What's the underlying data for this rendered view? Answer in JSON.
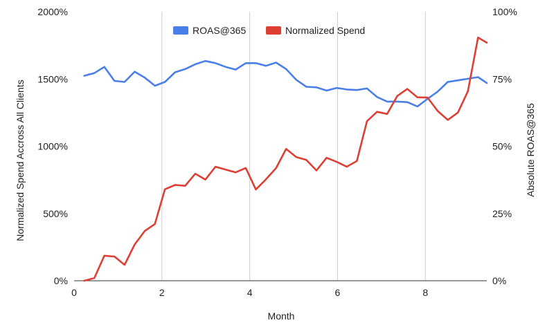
{
  "chart_data": {
    "type": "line",
    "title": "",
    "xlabel": "Month",
    "ylabel_left": "Normalized Spend Accross All Clients",
    "ylabel_right": "Absolute ROAS@365",
    "xlim": [
      0,
      9.4
    ],
    "xticks": [
      0,
      2,
      4,
      6,
      8
    ],
    "xtick_labels": [
      "0",
      "2",
      "4",
      "6",
      "8"
    ],
    "ylim_left": [
      0,
      2000
    ],
    "yticks_left": [
      0,
      500,
      1000,
      1500,
      2000
    ],
    "ytick_labels_left": [
      "0%",
      "500%",
      "1000%",
      "1500%",
      "2000%"
    ],
    "ylim_right": [
      0,
      100
    ],
    "yticks_right": [
      0,
      25,
      50,
      75,
      100
    ],
    "ytick_labels_right": [
      "0%",
      "25%",
      "50%",
      "75%",
      "100%"
    ],
    "grid": "vertical",
    "legend_position": "top-center",
    "series": [
      {
        "name": "ROAS@365",
        "axis": "right",
        "color": "#4a7ee8",
        "x": [
          0.23,
          0.46,
          0.69,
          0.92,
          1.15,
          1.38,
          1.61,
          1.84,
          2.07,
          2.3,
          2.53,
          2.76,
          2.99,
          3.22,
          3.45,
          3.68,
          3.91,
          4.14,
          4.37,
          4.6,
          4.83,
          5.06,
          5.29,
          5.52,
          5.75,
          5.98,
          6.21,
          6.44,
          6.67,
          6.9,
          7.13,
          7.36,
          7.59,
          7.82,
          8.05,
          8.28,
          8.51,
          8.74,
          8.97,
          9.2,
          9.4
        ],
        "values": [
          76.2,
          77.2,
          79.5,
          74.3,
          73.9,
          77.7,
          75.5,
          72.5,
          73.9,
          77.5,
          78.7,
          80.5,
          81.7,
          80.9,
          79.5,
          78.5,
          80.9,
          80.9,
          79.9,
          81.1,
          78.7,
          74.7,
          72.1,
          71.9,
          70.7,
          71.7,
          71.1,
          70.9,
          71.5,
          68.3,
          66.6,
          66.6,
          66.4,
          64.8,
          67.6,
          70.3,
          73.9,
          74.5,
          75.1,
          75.7,
          73.5
        ]
      },
      {
        "name": "Normalized Spend",
        "axis": "left",
        "color": "#dd3f34",
        "x": [
          0.23,
          0.46,
          0.69,
          0.92,
          1.15,
          1.38,
          1.61,
          1.84,
          2.07,
          2.3,
          2.53,
          2.76,
          2.99,
          3.22,
          3.45,
          3.68,
          3.91,
          4.14,
          4.37,
          4.6,
          4.83,
          5.06,
          5.29,
          5.52,
          5.75,
          5.98,
          6.21,
          6.44,
          6.67,
          6.9,
          7.13,
          7.36,
          7.59,
          7.82,
          8.05,
          8.28,
          8.51,
          8.74,
          8.97,
          9.2,
          9.4
        ],
        "values": [
          0,
          20,
          186,
          180,
          118,
          270,
          370,
          422,
          680,
          712,
          706,
          796,
          752,
          848,
          826,
          806,
          838,
          678,
          754,
          838,
          980,
          920,
          898,
          820,
          914,
          884,
          848,
          890,
          1186,
          1256,
          1240,
          1374,
          1426,
          1364,
          1362,
          1262,
          1196,
          1250,
          1410,
          1808,
          1770
        ]
      }
    ]
  }
}
